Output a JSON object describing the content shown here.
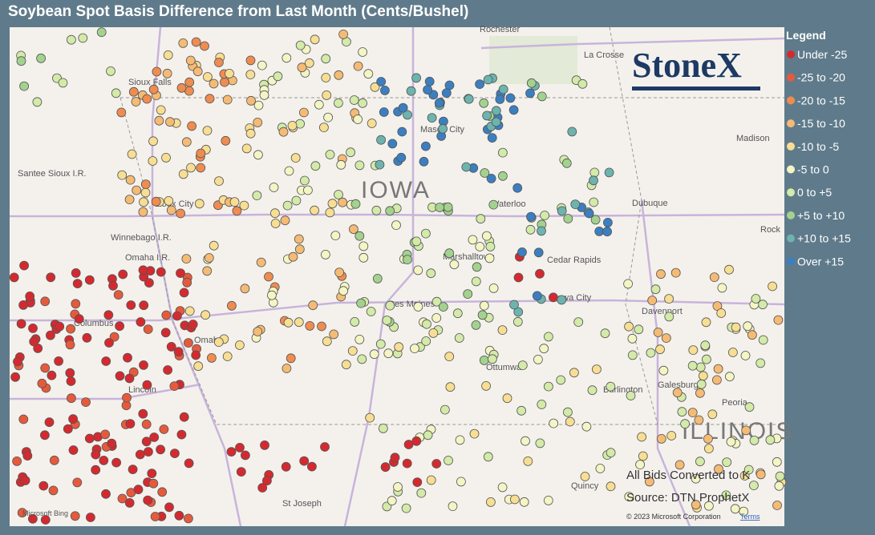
{
  "title": "Soybean Spot Basis Difference from Last Month (Cents/Bushel)",
  "legend": {
    "title": "Legend",
    "items": [
      {
        "label": "Under -25",
        "color": "#d42a2f"
      },
      {
        "label": "-25 to -20",
        "color": "#e65a3c"
      },
      {
        "label": "-20 to -15",
        "color": "#ef8c50"
      },
      {
        "label": "-15 to -10",
        "color": "#f5bb74"
      },
      {
        "label": "-10 to -5",
        "color": "#f7de92"
      },
      {
        "label": "-5 to 0",
        "color": "#f4f5c4"
      },
      {
        "label": "0 to +5",
        "color": "#d3eaa8"
      },
      {
        "label": "+5 to +10",
        "color": "#a3d28e"
      },
      {
        "label": "+10 to +15",
        "color": "#6db3ae"
      },
      {
        "label": "Over +15",
        "color": "#3b7fc0"
      }
    ]
  },
  "map": {
    "region_labels": [
      "IOWA",
      "ILLINOIS"
    ],
    "places": [
      "Rochester",
      "La Crosse",
      "Sioux Falls",
      "Mason City",
      "Sioux City",
      "Waterloo",
      "Dubuque",
      "Madison",
      "Rock",
      "Winnebago I.R.",
      "Omaha I.R.",
      "Santee Sioux I.R.",
      "Marshalltown",
      "Cedar Rapids",
      "Des Moines",
      "Iowa City",
      "Davenport",
      "Columbus",
      "Omaha",
      "Lincoln",
      "Ottumwa",
      "Burlington",
      "Galesburg",
      "Peoria",
      "Quincy",
      "St Joseph"
    ]
  },
  "logo": "StoneX",
  "notes": [
    "All Bids Converted to K",
    "Source: DTN ProphetX"
  ],
  "attribution": {
    "bing": "Microsoft Bing",
    "copyright": "© 2023 Microsoft Corporation",
    "terms": "Terms"
  }
}
